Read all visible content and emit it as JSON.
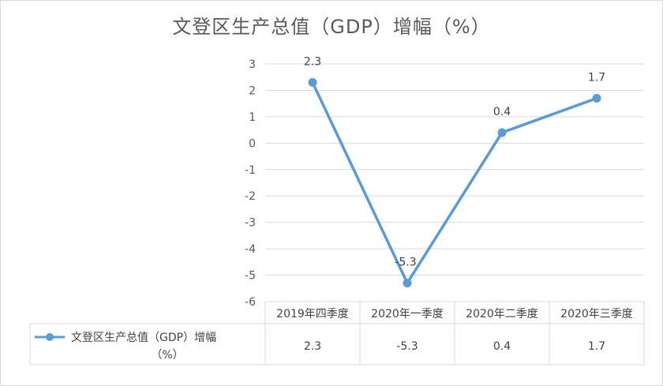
{
  "chart_data": {
    "type": "line",
    "title": "文登区生产总值（GDP）增幅（%）",
    "categories": [
      "2019年四季度",
      "2020年一季度",
      "2020年二季度",
      "2020年三季度"
    ],
    "series": [
      {
        "name": "文登区生产总值（GDP）增幅（%）",
        "values": [
          2.3,
          -5.3,
          0.4,
          1.7
        ],
        "color": "#5b9bd5"
      }
    ],
    "value_labels": [
      "2.3",
      "-5.3",
      "0.4",
      "1.7"
    ],
    "ylim": [
      -6,
      3
    ],
    "yticks": [
      "3",
      "2",
      "1",
      "0",
      "-1",
      "-2",
      "-3",
      "-4",
      "-5",
      "-6"
    ],
    "xlabel": "",
    "ylabel": "",
    "grid": true,
    "legend": "data-table-left",
    "data_table": true
  }
}
